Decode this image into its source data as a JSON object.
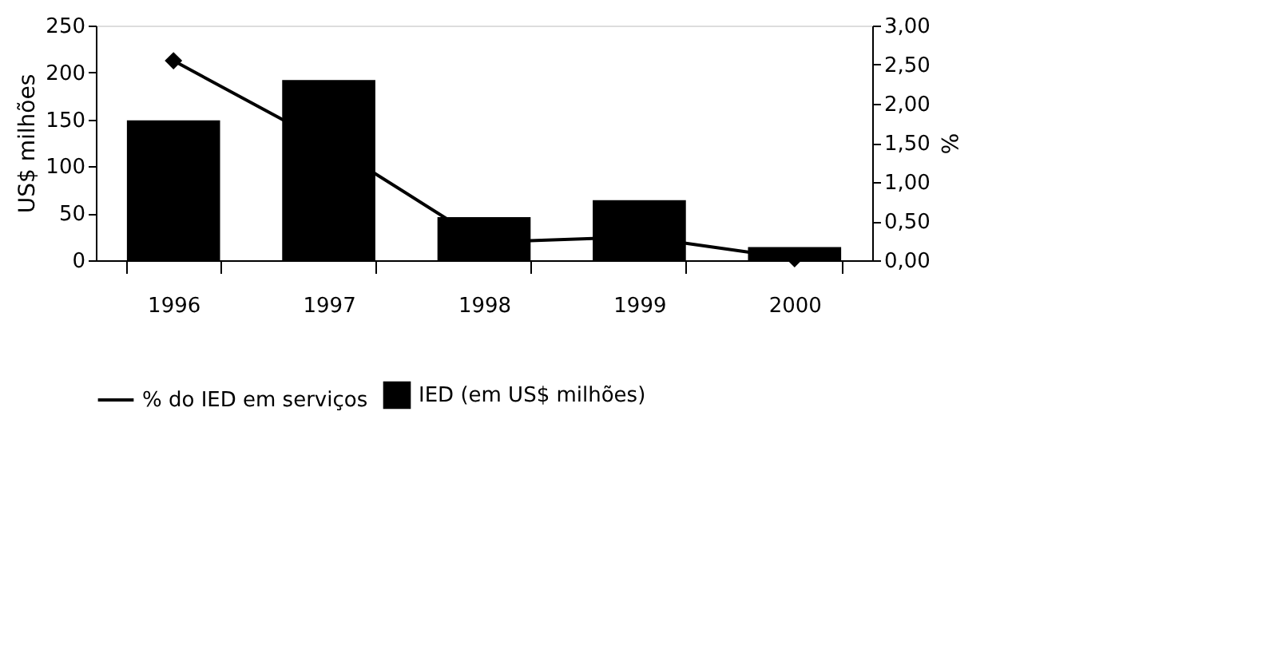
{
  "chart_data": {
    "type": "bar",
    "ylabel": "US$ milhões",
    "y2label": "%",
    "categories": [
      "1996",
      "1997",
      "1998",
      "1999",
      "2000"
    ],
    "series": [
      {
        "name": "IED (em US$ milhões)",
        "color": "#000000",
        "values": [
          149,
          192,
          46,
          64,
          14
        ]
      },
      {
        "name": "% do IED em serviços",
        "type": "line",
        "axis": "y2",
        "color": "#000000",
        "marker": "diamond",
        "values": [
          2.55,
          1.48,
          0.23,
          0.3,
          0.02
        ]
      }
    ],
    "ylim": [
      0,
      250
    ],
    "yticks": [
      0,
      50,
      100,
      150,
      200,
      250
    ],
    "y2lim": [
      0,
      3
    ],
    "y2ticks": [
      {
        "value": 0,
        "label": "0,00"
      },
      {
        "value": 0.5,
        "label": "0,50"
      },
      {
        "value": 1,
        "label": "1,00"
      },
      {
        "value": 1.5,
        "label": "1,50"
      },
      {
        "value": 2,
        "label": "2,00"
      },
      {
        "value": 2.5,
        "label": "2,50"
      },
      {
        "value": 3,
        "label": "3,00"
      }
    ],
    "grid": false,
    "legend": "bottom"
  }
}
